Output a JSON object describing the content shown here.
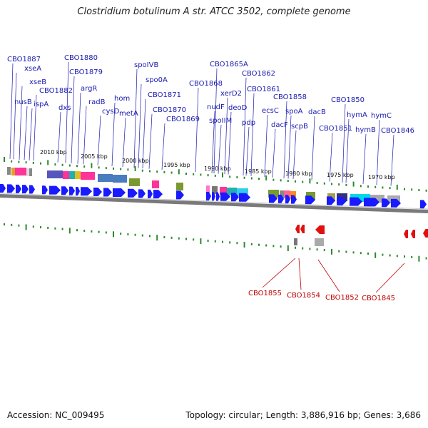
{
  "title": "Clostridium botulinum A str. ATCC 3502, complete genome",
  "footer": {
    "accession": "Accession: NC_009495",
    "summary": "Topology: circular; Length: 3,886,916 bp; Genes: 3,686"
  },
  "colors": {
    "forward_gene": "#1a1aff",
    "reverse_gene": "#e01010",
    "forward_label": "#1a1ab0",
    "reverse_label": "#c00000",
    "ruler": "#2a8a2a",
    "backbone": "#777777"
  },
  "scale_labels": [
    "2010 kbp",
    "2005 kbp",
    "2000 kbp",
    "1995 kbp",
    "1990 kbp",
    "1985 kbp",
    "1980 kbp",
    "1975 kbp",
    "1970 kbp"
  ],
  "forward_genes": [
    "CBO1887",
    "xseA",
    "xseB",
    "nusB",
    "ispA",
    "CBO1882",
    "dxs",
    "CBO1880",
    "CBO1879",
    "argR",
    "radB",
    "cysD",
    "hom",
    "metA",
    "spoIVB",
    "spo0A",
    "CBO1871",
    "CBO1870",
    "CBO1869",
    "CBO1868",
    "CBO1865A",
    "xerD2",
    "nudF",
    "deoD",
    "spoIIM",
    "CBO1862",
    "CBO1861",
    "pdp",
    "ecsC",
    "dacF",
    "CBO1858",
    "spoA",
    "scpB",
    "dacB",
    "CBO1850",
    "CBO1851",
    "hymA",
    "hymB",
    "hymC",
    "CBO1846"
  ],
  "reverse_genes": [
    "CBO1855",
    "CBO1854",
    "CBO1852",
    "CBO1845"
  ]
}
